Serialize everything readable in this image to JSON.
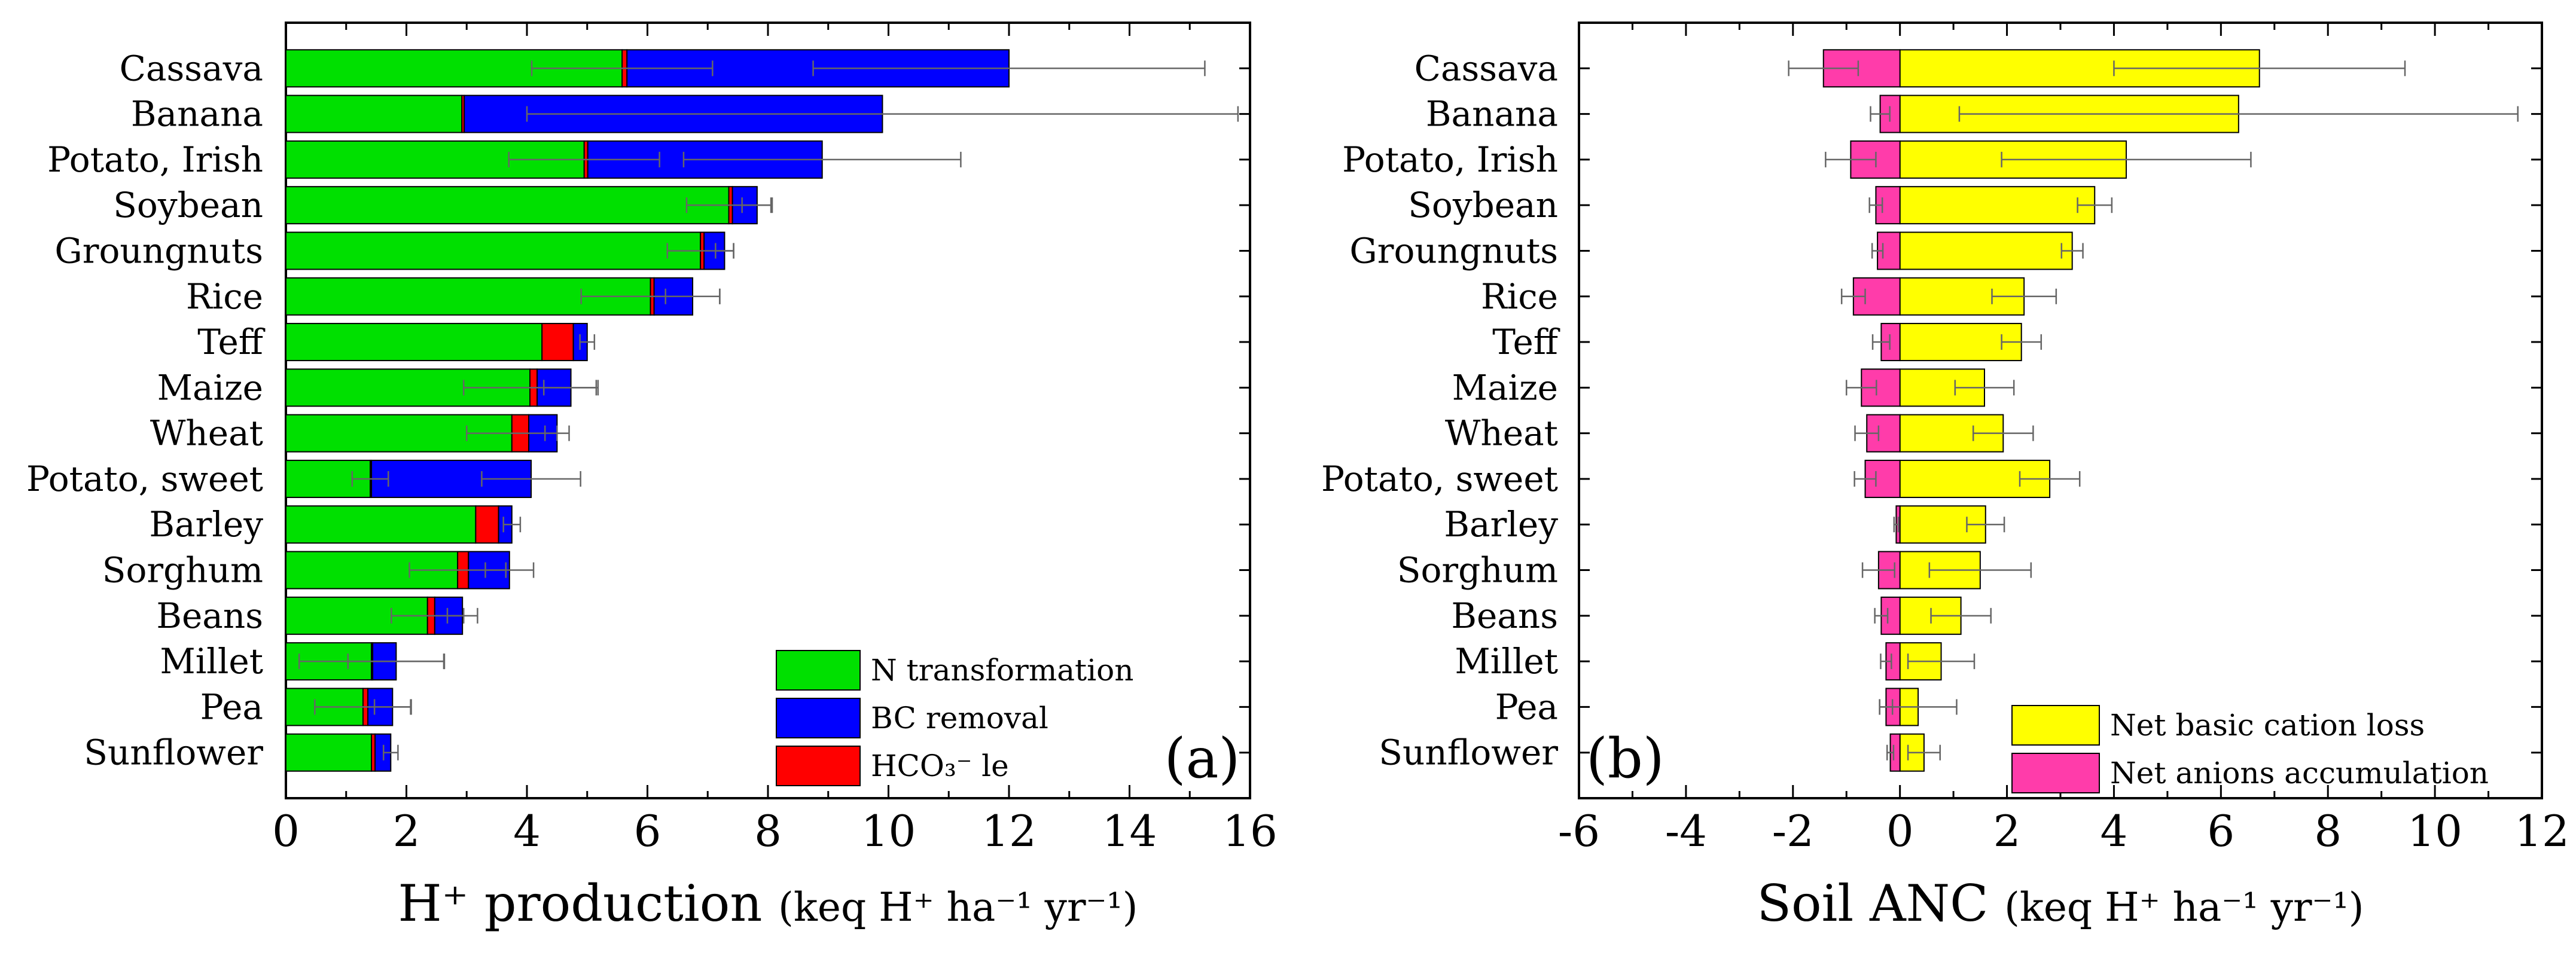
{
  "chart_data": [
    {
      "panel": "(a)",
      "type": "bar",
      "orientation": "horizontal",
      "stacked": true,
      "xlabel": "H⁺ production (keq H⁺ ha⁻¹ yr⁻¹)",
      "xlabel_parts": {
        "main": "H⁺ production",
        "units": "(keq H⁺ ha⁻¹ yr⁻¹)"
      },
      "xlim": [
        0,
        16
      ],
      "xticks": [
        0,
        2,
        4,
        6,
        8,
        10,
        12,
        14,
        16
      ],
      "categories": [
        "Cassava",
        "Banana",
        "Potato, Irish",
        "Soybean",
        "Groungnuts",
        "Rice",
        "Teff",
        "Maize",
        "Wheat",
        "Potato, sweet",
        "Barley",
        "Sorghum",
        "Beans",
        "Millet",
        "Pea",
        "Sunflower"
      ],
      "series": [
        {
          "name": "N transformation",
          "color": "#00e000",
          "values": [
            5.58,
            2.92,
            4.95,
            7.35,
            6.88,
            6.05,
            4.25,
            4.05,
            3.75,
            1.4,
            3.15,
            2.85,
            2.35,
            1.42,
            1.28,
            1.42
          ],
          "error": [
            1.5,
            0,
            1.25,
            0.7,
            0.55,
            1.15,
            0,
            1.1,
            0.75,
            0.3,
            0,
            0.8,
            0.6,
            1.2,
            0.8,
            0
          ]
        },
        {
          "name": "HCO₃⁻ le",
          "color": "#ff0000",
          "values": [
            0.08,
            0.04,
            0.06,
            0.06,
            0.06,
            0.06,
            0.52,
            0.12,
            0.28,
            0.02,
            0.38,
            0.18,
            0.12,
            0.02,
            0.08,
            0.06
          ],
          "error": [
            0,
            0,
            0,
            0,
            0,
            0,
            0,
            0,
            0,
            0,
            0,
            0,
            0,
            0,
            0,
            0
          ]
        },
        {
          "name": "BC removal",
          "color": "#0000ff",
          "values": [
            6.34,
            6.94,
            3.89,
            0.41,
            0.34,
            0.64,
            0.23,
            0.56,
            0.47,
            2.65,
            0.22,
            0.68,
            0.46,
            0.39,
            0.41,
            0.26
          ],
          "error": [
            3.25,
            5.9,
            2.3,
            0.25,
            0.15,
            0.45,
            0.12,
            0.45,
            0.2,
            0.82,
            0.14,
            0.4,
            0.25,
            0.8,
            0.3,
            0.12
          ]
        }
      ],
      "legend": {
        "position": "bottom-right",
        "entries": [
          {
            "label": "N transformation",
            "color": "#00e000"
          },
          {
            "label": "BC removal",
            "color": "#0000ff"
          },
          {
            "label": "HCO₃⁻ le",
            "color": "#ff0000"
          }
        ]
      },
      "annotation": "(a)"
    },
    {
      "panel": "(b)",
      "type": "bar",
      "orientation": "horizontal",
      "stacked": false,
      "xlabel": "Soil ANC (keq H⁺ ha⁻¹ yr⁻¹)",
      "xlabel_parts": {
        "main": "Soil ANC",
        "units": "(keq H⁺ ha⁻¹ yr⁻¹)"
      },
      "xlim": [
        -6,
        12
      ],
      "xticks": [
        -6,
        -4,
        -2,
        0,
        2,
        4,
        6,
        8,
        10,
        12
      ],
      "categories": [
        "Cassava",
        "Banana",
        "Potato, Irish",
        "Soybean",
        "Groungnuts",
        "Rice",
        "Teff",
        "Maize",
        "Wheat",
        "Potato, sweet",
        "Barley",
        "Sorghum",
        "Beans",
        "Millet",
        "Pea",
        "Sunflower"
      ],
      "series": [
        {
          "name": "Net basic cation loss",
          "color": "#ffff00",
          "values": [
            6.72,
            6.33,
            4.23,
            3.64,
            3.22,
            2.32,
            2.27,
            1.58,
            1.93,
            2.8,
            1.6,
            1.5,
            1.14,
            0.77,
            0.34,
            0.45
          ],
          "error": [
            2.72,
            5.22,
            2.33,
            0.32,
            0.2,
            0.6,
            0.37,
            0.55,
            0.56,
            0.56,
            0.35,
            0.95,
            0.56,
            0.62,
            0.72,
            0.3
          ]
        },
        {
          "name": "Net anions accumulation",
          "color": "#ff3caa",
          "values": [
            -1.43,
            -0.37,
            -0.92,
            -0.45,
            -0.42,
            -0.87,
            -0.35,
            -0.72,
            -0.62,
            -0.65,
            -0.07,
            -0.4,
            -0.35,
            -0.26,
            -0.26,
            -0.18
          ],
          "error": [
            0.65,
            0.18,
            0.47,
            0.12,
            0.1,
            0.22,
            0.16,
            0.28,
            0.22,
            0.2,
            0.04,
            0.3,
            0.12,
            0.1,
            0.12,
            0.06
          ]
        }
      ],
      "legend": {
        "position": "bottom-right",
        "entries": [
          {
            "label": "Net basic cation loss",
            "color": "#ffff00"
          },
          {
            "label": "Net anions accumulation",
            "color": "#ff3caa"
          }
        ]
      },
      "annotation": "(b)"
    }
  ]
}
